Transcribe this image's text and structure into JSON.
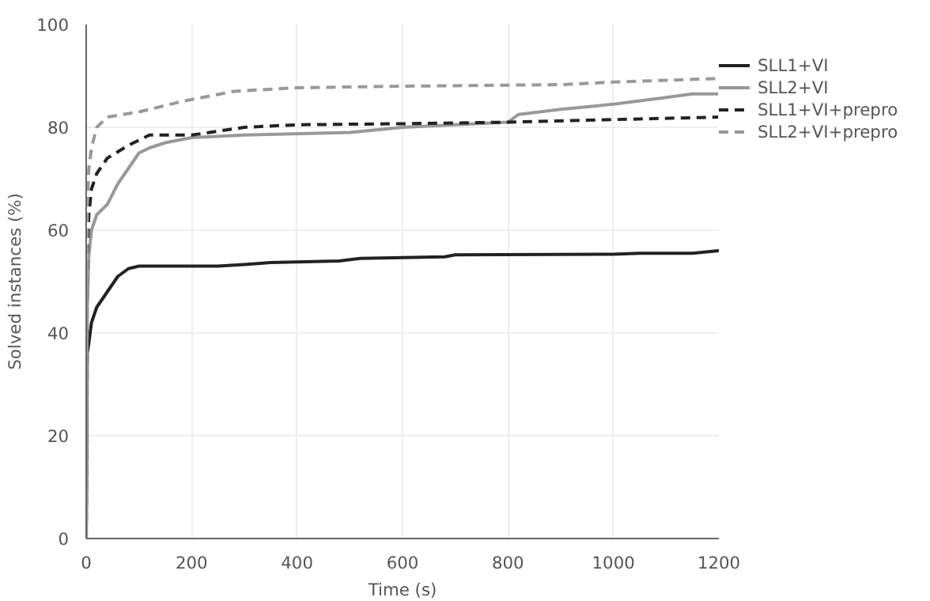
{
  "chart_data": {
    "type": "line",
    "xlabel": "Time (s)",
    "ylabel": "Solved instances (%)",
    "xlim": [
      0,
      1200
    ],
    "ylim": [
      0,
      100
    ],
    "xticks": [
      0,
      200,
      400,
      600,
      800,
      1000,
      1200
    ],
    "yticks": [
      0,
      20,
      40,
      60,
      80,
      100
    ],
    "grid": true,
    "legend": "top right",
    "marker": "none",
    "series": [
      {
        "name": "SLL1+VI",
        "color": "#222222",
        "line_style": "solid",
        "x": [
          0,
          2,
          5,
          10,
          20,
          40,
          60,
          80,
          100,
          250,
          300,
          350,
          400,
          480,
          520,
          680,
          700,
          1000,
          1050,
          1150,
          1200
        ],
        "values": [
          0,
          36,
          38,
          42,
          45,
          48,
          51,
          52.5,
          53,
          53,
          53.3,
          53.7,
          53.8,
          54,
          54.5,
          54.8,
          55.2,
          55.3,
          55.5,
          55.5,
          56
        ]
      },
      {
        "name": "SLL2+VI",
        "color": "#999999",
        "line_style": "solid",
        "x": [
          0,
          2,
          5,
          10,
          20,
          40,
          60,
          80,
          100,
          120,
          150,
          200,
          300,
          500,
          600,
          700,
          800,
          820,
          900,
          1000,
          1100,
          1150,
          1200
        ],
        "values": [
          0,
          45,
          55,
          60,
          63,
          65,
          69,
          72,
          75,
          76,
          77,
          78,
          78.5,
          79,
          80,
          80.5,
          81,
          82.5,
          83.5,
          84.5,
          85.8,
          86.5,
          86.5
        ]
      },
      {
        "name": "SLL1+VI+prepro",
        "color": "#222222",
        "line_style": "dashed",
        "x": [
          0,
          2,
          5,
          10,
          20,
          40,
          80,
          120,
          200,
          300,
          400,
          600,
          800,
          1000,
          1200
        ],
        "values": [
          0,
          55,
          63,
          68,
          71,
          74,
          76.5,
          78.5,
          78.5,
          80,
          80.5,
          80.7,
          81,
          81.5,
          82
        ]
      },
      {
        "name": "SLL2+VI+prepro",
        "color": "#999999",
        "line_style": "dashed",
        "x": [
          0,
          2,
          5,
          10,
          20,
          40,
          100,
          180,
          280,
          400,
          600,
          900,
          1000,
          1200
        ],
        "values": [
          0,
          65,
          72,
          76,
          80,
          82,
          83,
          85,
          87,
          87.7,
          88,
          88.3,
          88.8,
          89.5
        ]
      }
    ]
  }
}
